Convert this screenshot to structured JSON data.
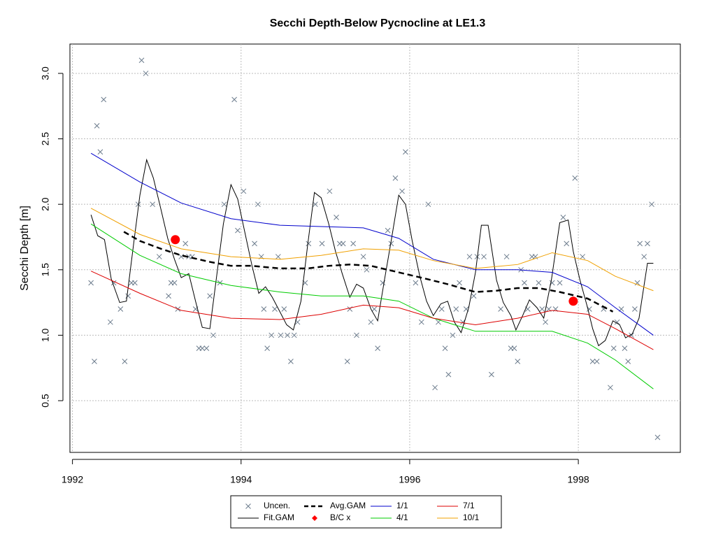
{
  "chart_data": {
    "type": "line",
    "title": "Secchi Depth-Below Pycnocline at LE1.3",
    "ylabel": "Secchi Depth [m]",
    "xlim": [
      1991.97,
      1999.21
    ],
    "ylim": [
      0.105,
      3.224
    ],
    "xticks": [
      1992,
      1994,
      1996,
      1998
    ],
    "yticks": [
      0.5,
      {
        "value": 1,
        "label": "1.0"
      },
      1.5,
      {
        "value": 2,
        "label": "2.0"
      },
      2.5,
      {
        "value": 3,
        "label": "3.0"
      }
    ],
    "grid": true,
    "legend": "bottom",
    "series": [
      {
        "name": "Uncen.",
        "color": "#6b7b8c",
        "mode": "points",
        "marker": "x",
        "x": [
          1992.22,
          1992.26,
          1992.29,
          1992.33,
          1992.37,
          1992.45,
          1992.49,
          1992.57,
          1992.62,
          1992.66,
          1992.7,
          1992.74,
          1992.78,
          1992.82,
          1992.87,
          1992.95,
          1993.03,
          1993.14,
          1993.17,
          1993.21,
          1993.25,
          1993.29,
          1993.34,
          1993.38,
          1993.42,
          1993.46,
          1993.5,
          1993.54,
          1993.59,
          1993.63,
          1993.67,
          1993.75,
          1993.8,
          1993.92,
          1993.96,
          1994.03,
          1994.16,
          1994.2,
          1994.24,
          1994.27,
          1994.31,
          1994.36,
          1994.4,
          1994.44,
          1994.47,
          1994.51,
          1994.55,
          1994.59,
          1994.63,
          1994.67,
          1994.76,
          1994.8,
          1994.88,
          1994.96,
          1995.05,
          1995.13,
          1995.17,
          1995.21,
          1995.26,
          1995.29,
          1995.33,
          1995.37,
          1995.45,
          1995.49,
          1995.54,
          1995.58,
          1995.62,
          1995.68,
          1995.74,
          1995.78,
          1995.83,
          1995.91,
          1995.95,
          1996.07,
          1996.14,
          1996.22,
          1996.3,
          1996.34,
          1996.38,
          1996.42,
          1996.46,
          1996.51,
          1996.55,
          1996.59,
          1996.63,
          1996.67,
          1996.71,
          1996.76,
          1996.8,
          1996.88,
          1996.97,
          1997.08,
          1997.15,
          1997.2,
          1997.24,
          1997.28,
          1997.32,
          1997.36,
          1997.4,
          1997.45,
          1997.49,
          1997.53,
          1997.57,
          1997.61,
          1997.65,
          1997.69,
          1997.73,
          1997.78,
          1997.82,
          1997.86,
          1997.96,
          1998.05,
          1998.13,
          1998.17,
          1998.22,
          1998.3,
          1998.38,
          1998.42,
          1998.46,
          1998.51,
          1998.55,
          1998.59,
          1998.63,
          1998.67,
          1998.7,
          1998.73,
          1998.78,
          1998.82,
          1998.87,
          1998.94
        ],
        "values": [
          1.4,
          0.8,
          2.6,
          2.4,
          2.8,
          1.1,
          1.4,
          1.2,
          0.8,
          1.3,
          1.4,
          1.4,
          2.0,
          3.1,
          3.0,
          2.0,
          1.6,
          1.3,
          1.4,
          1.4,
          1.2,
          1.6,
          1.7,
          1.6,
          1.6,
          1.2,
          0.9,
          0.9,
          0.9,
          1.3,
          1.0,
          1.4,
          2.0,
          2.8,
          1.8,
          2.1,
          1.7,
          2.0,
          1.6,
          1.2,
          0.9,
          1.0,
          1.2,
          1.6,
          1.0,
          1.2,
          1.0,
          0.8,
          1.0,
          1.1,
          1.4,
          1.7,
          2.0,
          1.7,
          2.1,
          1.9,
          1.7,
          1.7,
          0.8,
          1.2,
          1.7,
          1.0,
          1.6,
          1.5,
          1.1,
          1.2,
          0.9,
          1.4,
          1.8,
          1.7,
          2.2,
          2.1,
          2.4,
          1.4,
          1.1,
          2.0,
          0.6,
          1.1,
          1.2,
          0.9,
          0.7,
          1.0,
          1.2,
          1.4,
          1.1,
          1.2,
          1.6,
          1.3,
          1.6,
          1.6,
          0.7,
          1.2,
          1.6,
          0.9,
          0.9,
          0.8,
          1.5,
          1.4,
          1.2,
          1.6,
          1.6,
          1.4,
          1.2,
          1.1,
          1.2,
          1.4,
          1.2,
          1.4,
          1.9,
          1.7,
          2.2,
          1.6,
          1.2,
          0.8,
          0.8,
          1.2,
          0.6,
          0.9,
          1.1,
          1.2,
          0.9,
          0.8,
          1.0,
          1.2,
          1.4,
          1.7,
          1.6,
          1.7,
          2.0,
          0.22
        ]
      },
      {
        "name": "Fit.GAM",
        "color": "#000000",
        "mode": "line",
        "width": 1,
        "x": [
          1992.22,
          1992.3,
          1992.38,
          1992.46,
          1992.56,
          1992.64,
          1992.73,
          1992.8,
          1992.88,
          1992.96,
          1993.05,
          1993.13,
          1993.21,
          1993.29,
          1993.38,
          1993.46,
          1993.54,
          1993.63,
          1993.71,
          1993.79,
          1993.88,
          1993.96,
          1994.04,
          1994.13,
          1994.21,
          1994.29,
          1994.37,
          1994.46,
          1994.54,
          1994.62,
          1994.71,
          1994.79,
          1994.87,
          1994.95,
          1995.04,
          1995.12,
          1995.2,
          1995.29,
          1995.37,
          1995.45,
          1995.54,
          1995.62,
          1995.7,
          1995.78,
          1995.87,
          1995.95,
          1996.03,
          1996.12,
          1996.2,
          1996.28,
          1996.37,
          1996.45,
          1996.53,
          1996.61,
          1996.7,
          1996.78,
          1996.85,
          1996.93,
          1997.03,
          1997.11,
          1997.2,
          1997.26,
          1997.34,
          1997.42,
          1997.51,
          1997.59,
          1997.68,
          1997.78,
          1997.88,
          1997.94,
          1998.02,
          1998.11,
          1998.17,
          1998.24,
          1998.32,
          1998.41,
          1998.49,
          1998.56,
          1998.64,
          1998.72,
          1998.77,
          1998.82,
          1998.89
        ],
        "values": [
          1.92,
          1.76,
          1.73,
          1.43,
          1.25,
          1.26,
          1.72,
          2.07,
          2.34,
          2.2,
          1.96,
          1.74,
          1.58,
          1.44,
          1.47,
          1.26,
          1.06,
          1.05,
          1.45,
          1.85,
          2.15,
          2.04,
          1.8,
          1.53,
          1.32,
          1.37,
          1.29,
          1.18,
          1.08,
          1.04,
          1.26,
          1.69,
          2.09,
          2.05,
          1.85,
          1.64,
          1.47,
          1.29,
          1.39,
          1.36,
          1.2,
          1.11,
          1.42,
          1.72,
          2.07,
          2.0,
          1.72,
          1.45,
          1.26,
          1.15,
          1.24,
          1.26,
          1.1,
          1.02,
          1.21,
          1.48,
          1.84,
          1.84,
          1.42,
          1.25,
          1.15,
          1.04,
          1.15,
          1.27,
          1.21,
          1.13,
          1.42,
          1.86,
          1.88,
          1.64,
          1.42,
          1.21,
          1.05,
          0.92,
          0.96,
          1.11,
          1.08,
          0.98,
          1.01,
          1.13,
          1.34,
          1.55,
          1.55
        ]
      },
      {
        "name": "Avg.GAM",
        "color": "#000000",
        "mode": "line",
        "width": 2.5,
        "dashed": true,
        "x": [
          1992.61,
          1992.8,
          1993.05,
          1993.29,
          1993.63,
          1993.88,
          1994.13,
          1994.46,
          1994.79,
          1995.04,
          1995.29,
          1995.54,
          1995.87,
          1996.2,
          1996.45,
          1996.78,
          1997.03,
          1997.28,
          1997.53,
          1997.78,
          1998.11,
          1998.41
        ],
        "values": [
          1.79,
          1.72,
          1.66,
          1.61,
          1.56,
          1.53,
          1.53,
          1.51,
          1.51,
          1.53,
          1.54,
          1.53,
          1.48,
          1.43,
          1.39,
          1.33,
          1.34,
          1.36,
          1.36,
          1.33,
          1.28,
          1.18
        ]
      },
      {
        "name": "B/C x",
        "color": "#ff0000",
        "mode": "points",
        "marker": "dot",
        "x": [
          1993.22,
          1997.94
        ],
        "values": [
          1.73,
          1.26
        ]
      },
      {
        "name": "1/1",
        "color": "#0000cc",
        "mode": "line",
        "width": 1,
        "x": [
          1992.22,
          1992.8,
          1993.29,
          1993.88,
          1994.46,
          1994.95,
          1995.45,
          1995.87,
          1996.28,
          1996.78,
          1997.28,
          1997.69,
          1998.11,
          1998.44,
          1998.89
        ],
        "values": [
          2.39,
          2.17,
          2.01,
          1.89,
          1.84,
          1.83,
          1.82,
          1.74,
          1.58,
          1.5,
          1.5,
          1.48,
          1.37,
          1.21,
          1.0
        ]
      },
      {
        "name": "4/1",
        "color": "#00cc00",
        "mode": "line",
        "width": 1,
        "x": [
          1992.22,
          1992.8,
          1993.29,
          1993.88,
          1994.46,
          1994.95,
          1995.45,
          1995.87,
          1996.28,
          1996.78,
          1997.28,
          1997.69,
          1998.11,
          1998.44,
          1998.89
        ],
        "values": [
          1.85,
          1.61,
          1.47,
          1.38,
          1.33,
          1.3,
          1.3,
          1.26,
          1.13,
          1.03,
          1.03,
          1.03,
          0.94,
          0.81,
          0.59
        ]
      },
      {
        "name": "7/1",
        "color": "#dd0000",
        "mode": "line",
        "width": 1,
        "x": [
          1992.22,
          1992.8,
          1993.29,
          1993.88,
          1994.46,
          1994.95,
          1995.45,
          1995.87,
          1996.28,
          1996.78,
          1997.28,
          1997.69,
          1998.11,
          1998.44,
          1998.89
        ],
        "values": [
          1.49,
          1.32,
          1.19,
          1.13,
          1.12,
          1.16,
          1.23,
          1.21,
          1.13,
          1.08,
          1.13,
          1.19,
          1.16,
          1.05,
          0.89
        ]
      },
      {
        "name": "10/1",
        "color": "#f0a000",
        "mode": "line",
        "width": 1,
        "x": [
          1992.22,
          1992.8,
          1993.29,
          1993.88,
          1994.46,
          1994.95,
          1995.45,
          1995.87,
          1996.28,
          1996.78,
          1997.28,
          1997.69,
          1998.11,
          1998.44,
          1998.89
        ],
        "values": [
          1.97,
          1.77,
          1.66,
          1.6,
          1.58,
          1.61,
          1.66,
          1.65,
          1.57,
          1.51,
          1.54,
          1.63,
          1.57,
          1.45,
          1.34
        ]
      }
    ]
  }
}
